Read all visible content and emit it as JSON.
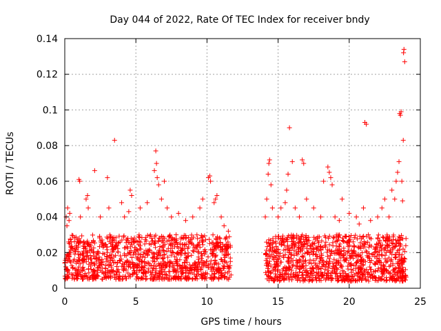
{
  "chart_data": {
    "type": "scatter",
    "title": "Day 044 of 2022, Rate Of TEC Index for receiver bndy",
    "xlabel": "GPS time / hours",
    "ylabel": "ROTI / TECUs",
    "xlim": [
      0,
      25
    ],
    "ylim": [
      0,
      0.14
    ],
    "grid": true,
    "marker": "plus",
    "series_color": "#ff0000",
    "x_ticks": [
      0,
      5,
      10,
      15,
      20,
      25
    ],
    "y_ticks": [
      0,
      0.02,
      0.04,
      0.06,
      0.08,
      0.1,
      0.12,
      0.14
    ],
    "x_tick_labels": [
      "0",
      "5",
      "10",
      "15",
      "20",
      "25"
    ],
    "y_tick_labels": [
      "0",
      "0.02",
      "0.04",
      "0.06",
      "0.08",
      "0.1",
      "0.12",
      "0.14"
    ],
    "dense_segments": [
      {
        "x_start": 0.0,
        "x_end": 11.7,
        "y_min": 0.005,
        "y_max": 0.03,
        "count": 1100
      },
      {
        "x_start": 14.1,
        "x_end": 24.0,
        "y_min": 0.004,
        "y_max": 0.03,
        "count": 1000
      }
    ],
    "series": [
      {
        "name": "ROTI",
        "x": [
          0.1,
          0.15,
          0.2,
          0.3,
          0.35,
          1.0,
          1.05,
          1.1,
          1.5,
          1.6,
          1.65,
          2.1,
          2.5,
          3.0,
          3.1,
          3.5,
          4.0,
          4.2,
          4.5,
          4.6,
          4.7,
          5.3,
          5.8,
          6.3,
          6.4,
          6.45,
          6.5,
          6.6,
          6.8,
          7.0,
          7.2,
          7.5,
          8.0,
          8.5,
          9.0,
          9.5,
          9.7,
          10.1,
          10.2,
          10.25,
          10.5,
          10.6,
          10.7,
          11.0,
          11.2,
          11.5,
          14.1,
          14.2,
          14.3,
          14.35,
          14.4,
          14.5,
          14.6,
          15.0,
          15.2,
          15.5,
          15.6,
          15.7,
          15.8,
          16.0,
          16.2,
          16.5,
          16.7,
          16.8,
          17.0,
          17.5,
          18.0,
          18.2,
          18.5,
          18.6,
          18.7,
          18.8,
          19.0,
          19.3,
          19.5,
          20.0,
          20.5,
          20.7,
          21.0,
          21.1,
          21.2,
          21.5,
          22.0,
          22.3,
          22.5,
          22.8,
          23.0,
          23.2,
          23.3,
          23.4,
          23.5,
          23.55,
          23.6,
          23.65,
          23.7,
          23.75,
          23.8,
          23.82,
          23.85,
          23.9
        ],
        "y": [
          0.04,
          0.035,
          0.045,
          0.038,
          0.042,
          0.061,
          0.06,
          0.04,
          0.05,
          0.052,
          0.045,
          0.066,
          0.04,
          0.062,
          0.045,
          0.083,
          0.048,
          0.04,
          0.043,
          0.055,
          0.052,
          0.045,
          0.048,
          0.066,
          0.077,
          0.07,
          0.062,
          0.058,
          0.05,
          0.06,
          0.045,
          0.04,
          0.042,
          0.038,
          0.04,
          0.045,
          0.05,
          0.062,
          0.063,
          0.06,
          0.048,
          0.05,
          0.052,
          0.04,
          0.035,
          0.032,
          0.04,
          0.05,
          0.064,
          0.07,
          0.072,
          0.058,
          0.045,
          0.04,
          0.045,
          0.048,
          0.055,
          0.064,
          0.09,
          0.071,
          0.045,
          0.04,
          0.072,
          0.07,
          0.05,
          0.045,
          0.04,
          0.06,
          0.068,
          0.065,
          0.062,
          0.058,
          0.04,
          0.038,
          0.05,
          0.042,
          0.04,
          0.036,
          0.045,
          0.093,
          0.092,
          0.038,
          0.04,
          0.045,
          0.05,
          0.04,
          0.055,
          0.05,
          0.06,
          0.065,
          0.071,
          0.098,
          0.097,
          0.099,
          0.06,
          0.049,
          0.083,
          0.132,
          0.134,
          0.127
        ]
      }
    ]
  }
}
